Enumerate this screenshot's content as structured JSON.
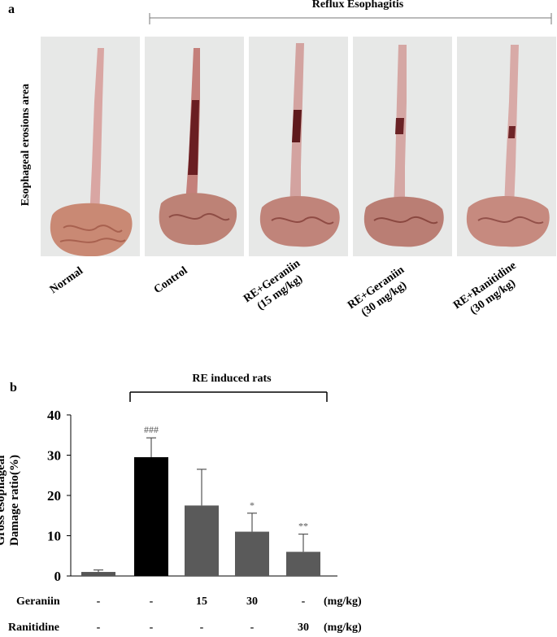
{
  "panel_a": {
    "letter": "a",
    "header": "Reflux Esophagitis",
    "y_label": "Esophageal erosions area",
    "groups": [
      {
        "line1": "Normal",
        "line2": ""
      },
      {
        "line1": "Control",
        "line2": ""
      },
      {
        "line1": "RE+Geraniin",
        "line2": "(15 mg/kg)"
      },
      {
        "line1": "RE+Geraniin",
        "line2": "(30 mg/kg)"
      },
      {
        "line1": "RE+Ranitidine",
        "line2": "(30 mg/kg)"
      }
    ]
  },
  "panel_b": {
    "letter": "b",
    "bracket_label": "RE induced rats",
    "rows": [
      {
        "label": "Geraniin",
        "values": [
          "-",
          "-",
          "15",
          "30",
          "-"
        ],
        "unit": "(mg/kg)"
      },
      {
        "label": "Ranitidine",
        "values": [
          "-",
          "-",
          "-",
          "-",
          "30"
        ],
        "unit": "(mg/kg)"
      }
    ]
  },
  "chart_data": {
    "type": "bar",
    "ylabel_line1": "Gross esophageal",
    "ylabel_line2": "Damage ratio(%)",
    "ylim": [
      0,
      40
    ],
    "yticks": [
      "0",
      "10",
      "20",
      "30",
      "40"
    ],
    "values": [
      1,
      29.5,
      17.5,
      11,
      6
    ],
    "errors": [
      0.5,
      4.8,
      9,
      4.6,
      4.4
    ],
    "annotations": [
      "",
      "###",
      "",
      "*",
      "**"
    ],
    "colors": [
      "#555555",
      "#000000",
      "#5a5a5a",
      "#5a5a5a",
      "#5a5a5a"
    ],
    "grid": false
  }
}
